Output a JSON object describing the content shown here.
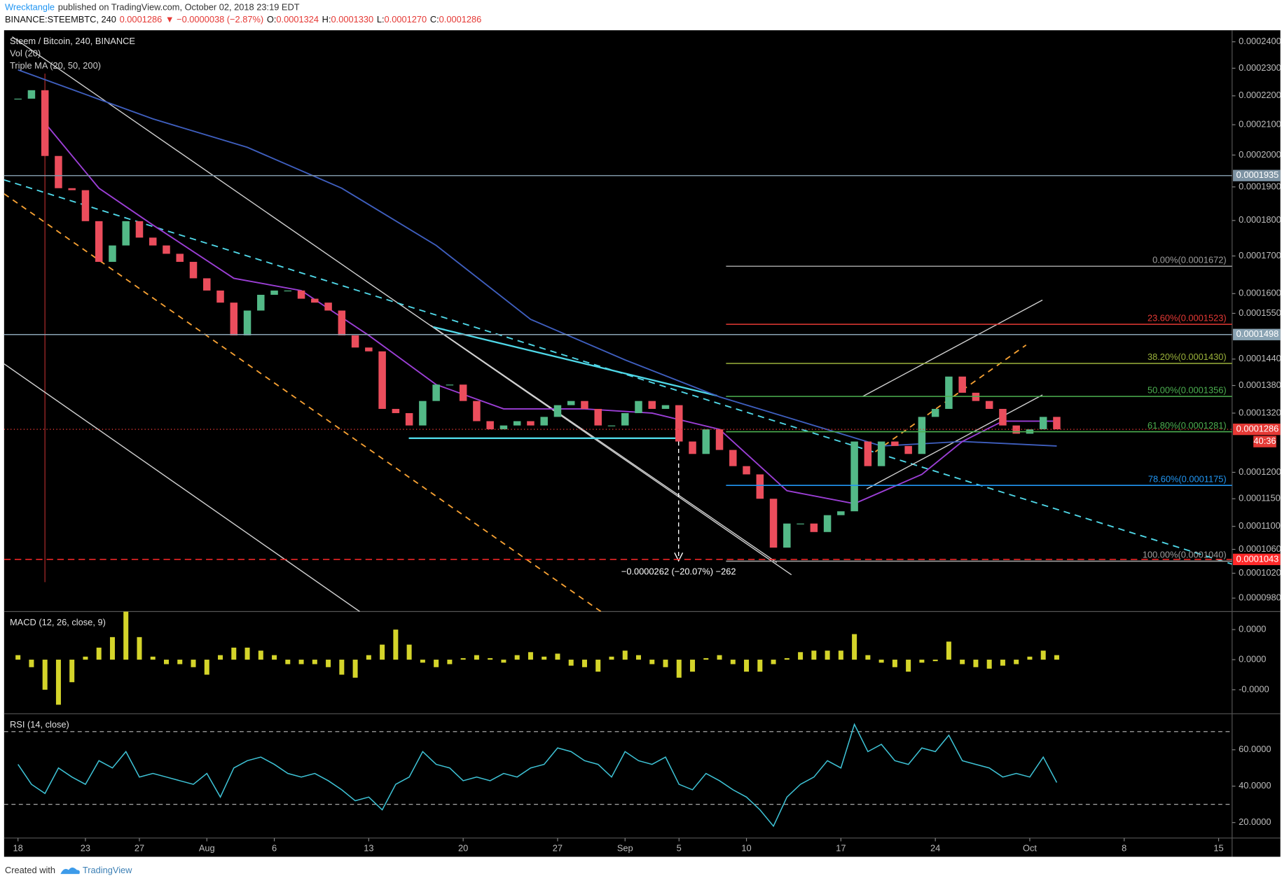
{
  "header": {
    "author": "Wrecktangle",
    "published": "published on TradingView.com, October 02, 2018 23:19 EDT",
    "symbol": "BINANCE:STEEMBTC, 240",
    "last": "0.0001286",
    "arrow": "▼",
    "change": "−0.0000038 (−2.87%)",
    "ohlc": [
      {
        "key": "O:",
        "value": "0.0001324"
      },
      {
        "key": "H:",
        "value": "0.0001330"
      },
      {
        "key": "L:",
        "value": "0.0001270"
      },
      {
        "key": "C:",
        "value": "0.0001286"
      }
    ]
  },
  "chart_data": [
    {
      "type": "candlestick",
      "title": "Steem / Bitcoin, 240, BINANCE",
      "subtitles": [
        "Vol (20)",
        "Triple MA (20, 50, 200)"
      ],
      "log_scale": true,
      "xlim": [
        -1.03,
        90
      ],
      "ylim": [
        9.59e-05,
        0.0002445
      ],
      "yticks": [
        {
          "value": 0.00024,
          "label": "0.0002400"
        },
        {
          "value": 0.00023,
          "label": "0.0002300"
        },
        {
          "value": 0.00022,
          "label": "0.0002200"
        },
        {
          "value": 0.00021,
          "label": "0.0002100"
        },
        {
          "value": 0.0002,
          "label": "0.0002000"
        },
        {
          "value": 0.00019,
          "label": "0.0001900"
        },
        {
          "value": 0.00018,
          "label": "0.0001800"
        },
        {
          "value": 0.00017,
          "label": "0.0001700"
        },
        {
          "value": 0.00016,
          "label": "0.0001600"
        },
        {
          "value": 0.000155,
          "label": "0.0001550"
        },
        {
          "value": 0.000144,
          "label": "0.0001440"
        },
        {
          "value": 0.000138,
          "label": "0.0001380"
        },
        {
          "value": 0.000132,
          "label": "0.0001320"
        },
        {
          "value": 0.00012,
          "label": "0.0001200"
        },
        {
          "value": 0.000115,
          "label": "0.0001150"
        },
        {
          "value": 0.00011,
          "label": "0.0001100"
        },
        {
          "value": 0.000106,
          "label": "0.0001060"
        },
        {
          "value": 0.000102,
          "label": "0.0001020"
        },
        {
          "value": 9.8e-05,
          "label": "0.0000980"
        }
      ],
      "up_color": "#53b987",
      "down_color": "#eb4d5c",
      "x": [
        0,
        1,
        2,
        3,
        4,
        5,
        6,
        7,
        8,
        9,
        10,
        11,
        12,
        13,
        14,
        15,
        16,
        17,
        18,
        19,
        20,
        21,
        22,
        23,
        24,
        25,
        26,
        27,
        28,
        29,
        30,
        31,
        32,
        33,
        34,
        35,
        36,
        37,
        38,
        39,
        40,
        41,
        42,
        43,
        44,
        45,
        46,
        47,
        48,
        49,
        50,
        51,
        52,
        53,
        54,
        55,
        56,
        57,
        58,
        59,
        60,
        61,
        62,
        63,
        64,
        65,
        66,
        67,
        68,
        69,
        70,
        71,
        72,
        73,
        74,
        75,
        76,
        77
      ],
      "values": [
        0.000219,
        0.000222,
        0.0001997,
        0.0001896,
        0.000189,
        0.0001798,
        0.0001684,
        0.0001729,
        0.0001798,
        0.0001751,
        0.0001729,
        0.0001706,
        0.0001684,
        0.000164,
        0.0001608,
        0.0001577,
        0.0001496,
        0.0001557,
        0.0001597,
        0.0001608,
        0.0001608,
        0.0001587,
        0.0001577,
        0.0001557,
        0.0001496,
        0.0001467,
        0.0001458,
        0.0001329,
        0.000132,
        0.0001294,
        0.0001346,
        0.0001382,
        0.0001382,
        0.0001346,
        0.0001303,
        0.0001286,
        0.0001294,
        0.0001303,
        0.0001294,
        0.0001312,
        0.0001337,
        0.0001346,
        0.0001329,
        0.0001294,
        0.0001294,
        0.000132,
        0.0001346,
        0.0001329,
        0.0001337,
        0.0001261,
        0.0001236,
        0.0001286,
        0.0001244,
        0.0001212,
        0.0001196,
        0.000115,
        0.0001063,
        0.0001105,
        0.0001105,
        0.000109,
        0.000112,
        0.0001127,
        0.0001261,
        0.0001212,
        0.0001261,
        0.0001252,
        0.0001236,
        0.0001312,
        0.0001329,
        0.00014,
        0.0001364,
        0.0001346,
        0.0001329,
        0.0001294,
        0.0001277,
        0.0001286,
        0.0001312,
        0.0001286
      ],
      "ma_lines": [
        {
          "color": "#3f5fbf",
          "x": [
            0,
            10,
            17,
            24,
            31,
            38,
            45,
            52,
            59,
            64,
            70,
            77
          ],
          "values": [
            0.0002294,
            0.000212,
            0.0002025,
            0.0001896,
            0.0001729,
            0.0001535,
            0.0001438,
            0.0001355,
            0.0001294,
            0.0001252,
            0.0001261,
            0.0001252
          ]
        },
        {
          "color": "#9c3fd6",
          "x": [
            2,
            6,
            10,
            16,
            21,
            26,
            31,
            36,
            42,
            47,
            52,
            57,
            62,
            67,
            70,
            73,
            77
          ],
          "values": [
            0.0002106,
            0.0001896,
            0.0001787,
            0.000164,
            0.0001608,
            0.0001496,
            0.0001382,
            0.0001329,
            0.0001329,
            0.000132,
            0.0001286,
            0.0001165,
            0.0001141,
            0.0001196,
            0.0001261,
            0.0001303,
            0.0001303
          ]
        }
      ],
      "levels": [
        {
          "value": 0.0001935,
          "color": "#7d93a3",
          "dash": "solid"
        },
        {
          "value": 0.0001498,
          "color": "#8aa3b3",
          "dash": "solid"
        },
        {
          "value": 0.0001286,
          "color": "#e53935",
          "dash": "dotted"
        },
        {
          "value": 0.0001043,
          "color": "#ff2a2a",
          "dash": "dashed"
        }
      ],
      "countdown": "40:36",
      "fib": [
        {
          "value": 0.0001672,
          "label": "0.00%(0.0001672)",
          "color": "#9e9e9e"
        },
        {
          "value": 0.0001523,
          "label": "23.60%(0.0001523)",
          "color": "#e53935"
        },
        {
          "value": 0.000143,
          "label": "38.20%(0.0001430)",
          "color": "#9ab13a"
        },
        {
          "value": 0.0001356,
          "label": "50.00%(0.0001356)",
          "color": "#4caf50"
        },
        {
          "value": 0.0001281,
          "label": "61.80%(0.0001281)",
          "color": "#4caf50"
        },
        {
          "value": 0.0001175,
          "label": "78.60%(0.0001175)",
          "color": "#2196f3"
        },
        {
          "value": 0.000104,
          "label": "100.00%(0.0001040)",
          "color": "#9e9e9e"
        }
      ],
      "measure": "−0.0000262 (−20.07%) −262"
    },
    {
      "type": "bar",
      "title": "MACD (12, 26, close, 9)",
      "color": "#d4d42a",
      "xlim": [
        -1.03,
        90
      ],
      "ylim": [
        -3.6e-06,
        3.2e-06
      ],
      "yticks": [
        {
          "value": 2e-06,
          "label": "0.0000"
        },
        {
          "value": 0,
          "label": "0.0000"
        },
        {
          "value": -2e-06,
          "label": "-0.0000"
        }
      ],
      "x": [
        0,
        1,
        2,
        3,
        4,
        5,
        6,
        7,
        8,
        9,
        10,
        11,
        12,
        13,
        14,
        15,
        16,
        17,
        18,
        19,
        20,
        21,
        22,
        23,
        24,
        25,
        26,
        27,
        28,
        29,
        30,
        31,
        32,
        33,
        34,
        35,
        36,
        37,
        38,
        39,
        40,
        41,
        42,
        43,
        44,
        45,
        46,
        47,
        48,
        49,
        50,
        51,
        52,
        53,
        54,
        55,
        56,
        57,
        58,
        59,
        60,
        61,
        62,
        63,
        64,
        65,
        66,
        67,
        68,
        69,
        70,
        71,
        72,
        73,
        74,
        75,
        76,
        77
      ],
      "values": [
        3e-07,
        -5e-07,
        -2e-06,
        -3e-06,
        -1.5e-06,
        2e-07,
        8e-07,
        1.5e-06,
        3.2e-06,
        1.5e-06,
        2e-07,
        -3e-07,
        -3e-07,
        -5e-07,
        -1e-06,
        3e-07,
        8e-07,
        8e-07,
        6e-07,
        3e-07,
        -3e-07,
        -3e-07,
        -3e-07,
        -5e-07,
        -1e-06,
        -1.2e-06,
        3e-07,
        1e-06,
        2e-06,
        1e-06,
        -2e-07,
        -5e-07,
        -3e-07,
        1e-07,
        3e-07,
        1e-07,
        -2e-07,
        3e-07,
        5e-07,
        2e-07,
        4e-07,
        -4e-07,
        -5e-07,
        -8e-07,
        2e-07,
        6e-07,
        3e-07,
        -3e-07,
        -5e-07,
        -1.2e-06,
        -8e-07,
        1e-07,
        3e-07,
        -3e-07,
        -8e-07,
        -8e-07,
        -3e-07,
        1e-07,
        5e-07,
        6e-07,
        6e-07,
        6e-07,
        1.7e-06,
        3e-07,
        -2e-07,
        -5e-07,
        -8e-07,
        -2e-07,
        -1e-07,
        1.2e-06,
        -3e-07,
        -5e-07,
        -6e-07,
        -4e-07,
        -3e-07,
        2e-07,
        6e-07,
        3e-07
      ]
    },
    {
      "type": "line",
      "title": "RSI (14, close)",
      "color": "#3ec3d6",
      "xlim": [
        -1.03,
        90
      ],
      "ylim": [
        11.5,
        79.8
      ],
      "yticks": [
        {
          "value": 60,
          "label": "60.0000"
        },
        {
          "value": 40,
          "label": "40.0000"
        },
        {
          "value": 20,
          "label": "20.0000"
        }
      ],
      "bands": [
        70,
        30
      ],
      "xticks": [
        {
          "value": 0,
          "label": "18"
        },
        {
          "value": 5,
          "label": "23"
        },
        {
          "value": 9,
          "label": "27"
        },
        {
          "value": 14,
          "label": "Aug"
        },
        {
          "value": 19,
          "label": "6"
        },
        {
          "value": 26,
          "label": "13"
        },
        {
          "value": 33,
          "label": "20"
        },
        {
          "value": 40,
          "label": "27"
        },
        {
          "value": 45,
          "label": "Sep"
        },
        {
          "value": 49,
          "label": "5"
        },
        {
          "value": 54,
          "label": "10"
        },
        {
          "value": 61,
          "label": "17"
        },
        {
          "value": 68,
          "label": "24"
        },
        {
          "value": 75,
          "label": "Oct"
        },
        {
          "value": 82,
          "label": "8"
        },
        {
          "value": 89,
          "label": "15"
        }
      ],
      "x": [
        0,
        1,
        2,
        3,
        4,
        5,
        6,
        7,
        8,
        9,
        10,
        11,
        12,
        13,
        14,
        15,
        16,
        17,
        18,
        19,
        20,
        21,
        22,
        23,
        24,
        25,
        26,
        27,
        28,
        29,
        30,
        31,
        32,
        33,
        34,
        35,
        36,
        37,
        38,
        39,
        40,
        41,
        42,
        43,
        44,
        45,
        46,
        47,
        48,
        49,
        50,
        51,
        52,
        53,
        54,
        55,
        56,
        57,
        58,
        59,
        60,
        61,
        62,
        63,
        64,
        65,
        66,
        67,
        68,
        69,
        70,
        71,
        72,
        73,
        74,
        75,
        76,
        77
      ],
      "values": [
        52,
        41,
        36,
        50,
        45,
        41,
        54,
        50,
        59,
        45,
        47,
        45,
        43,
        41,
        47,
        34,
        50,
        54,
        56,
        52,
        47,
        45,
        47,
        43,
        38,
        32,
        34,
        27,
        41,
        45,
        59,
        52,
        50,
        43,
        45,
        43,
        47,
        45,
        50,
        52,
        61,
        59,
        54,
        52,
        45,
        59,
        54,
        52,
        56,
        41,
        38,
        47,
        43,
        38,
        34,
        27,
        18,
        34,
        41,
        45,
        54,
        50,
        74,
        59,
        63,
        54,
        52,
        61,
        59,
        68,
        54,
        52,
        50,
        45,
        47,
        45,
        56,
        42
      ]
    }
  ],
  "footer": {
    "created": "Created with",
    "brand": "TradingView"
  }
}
